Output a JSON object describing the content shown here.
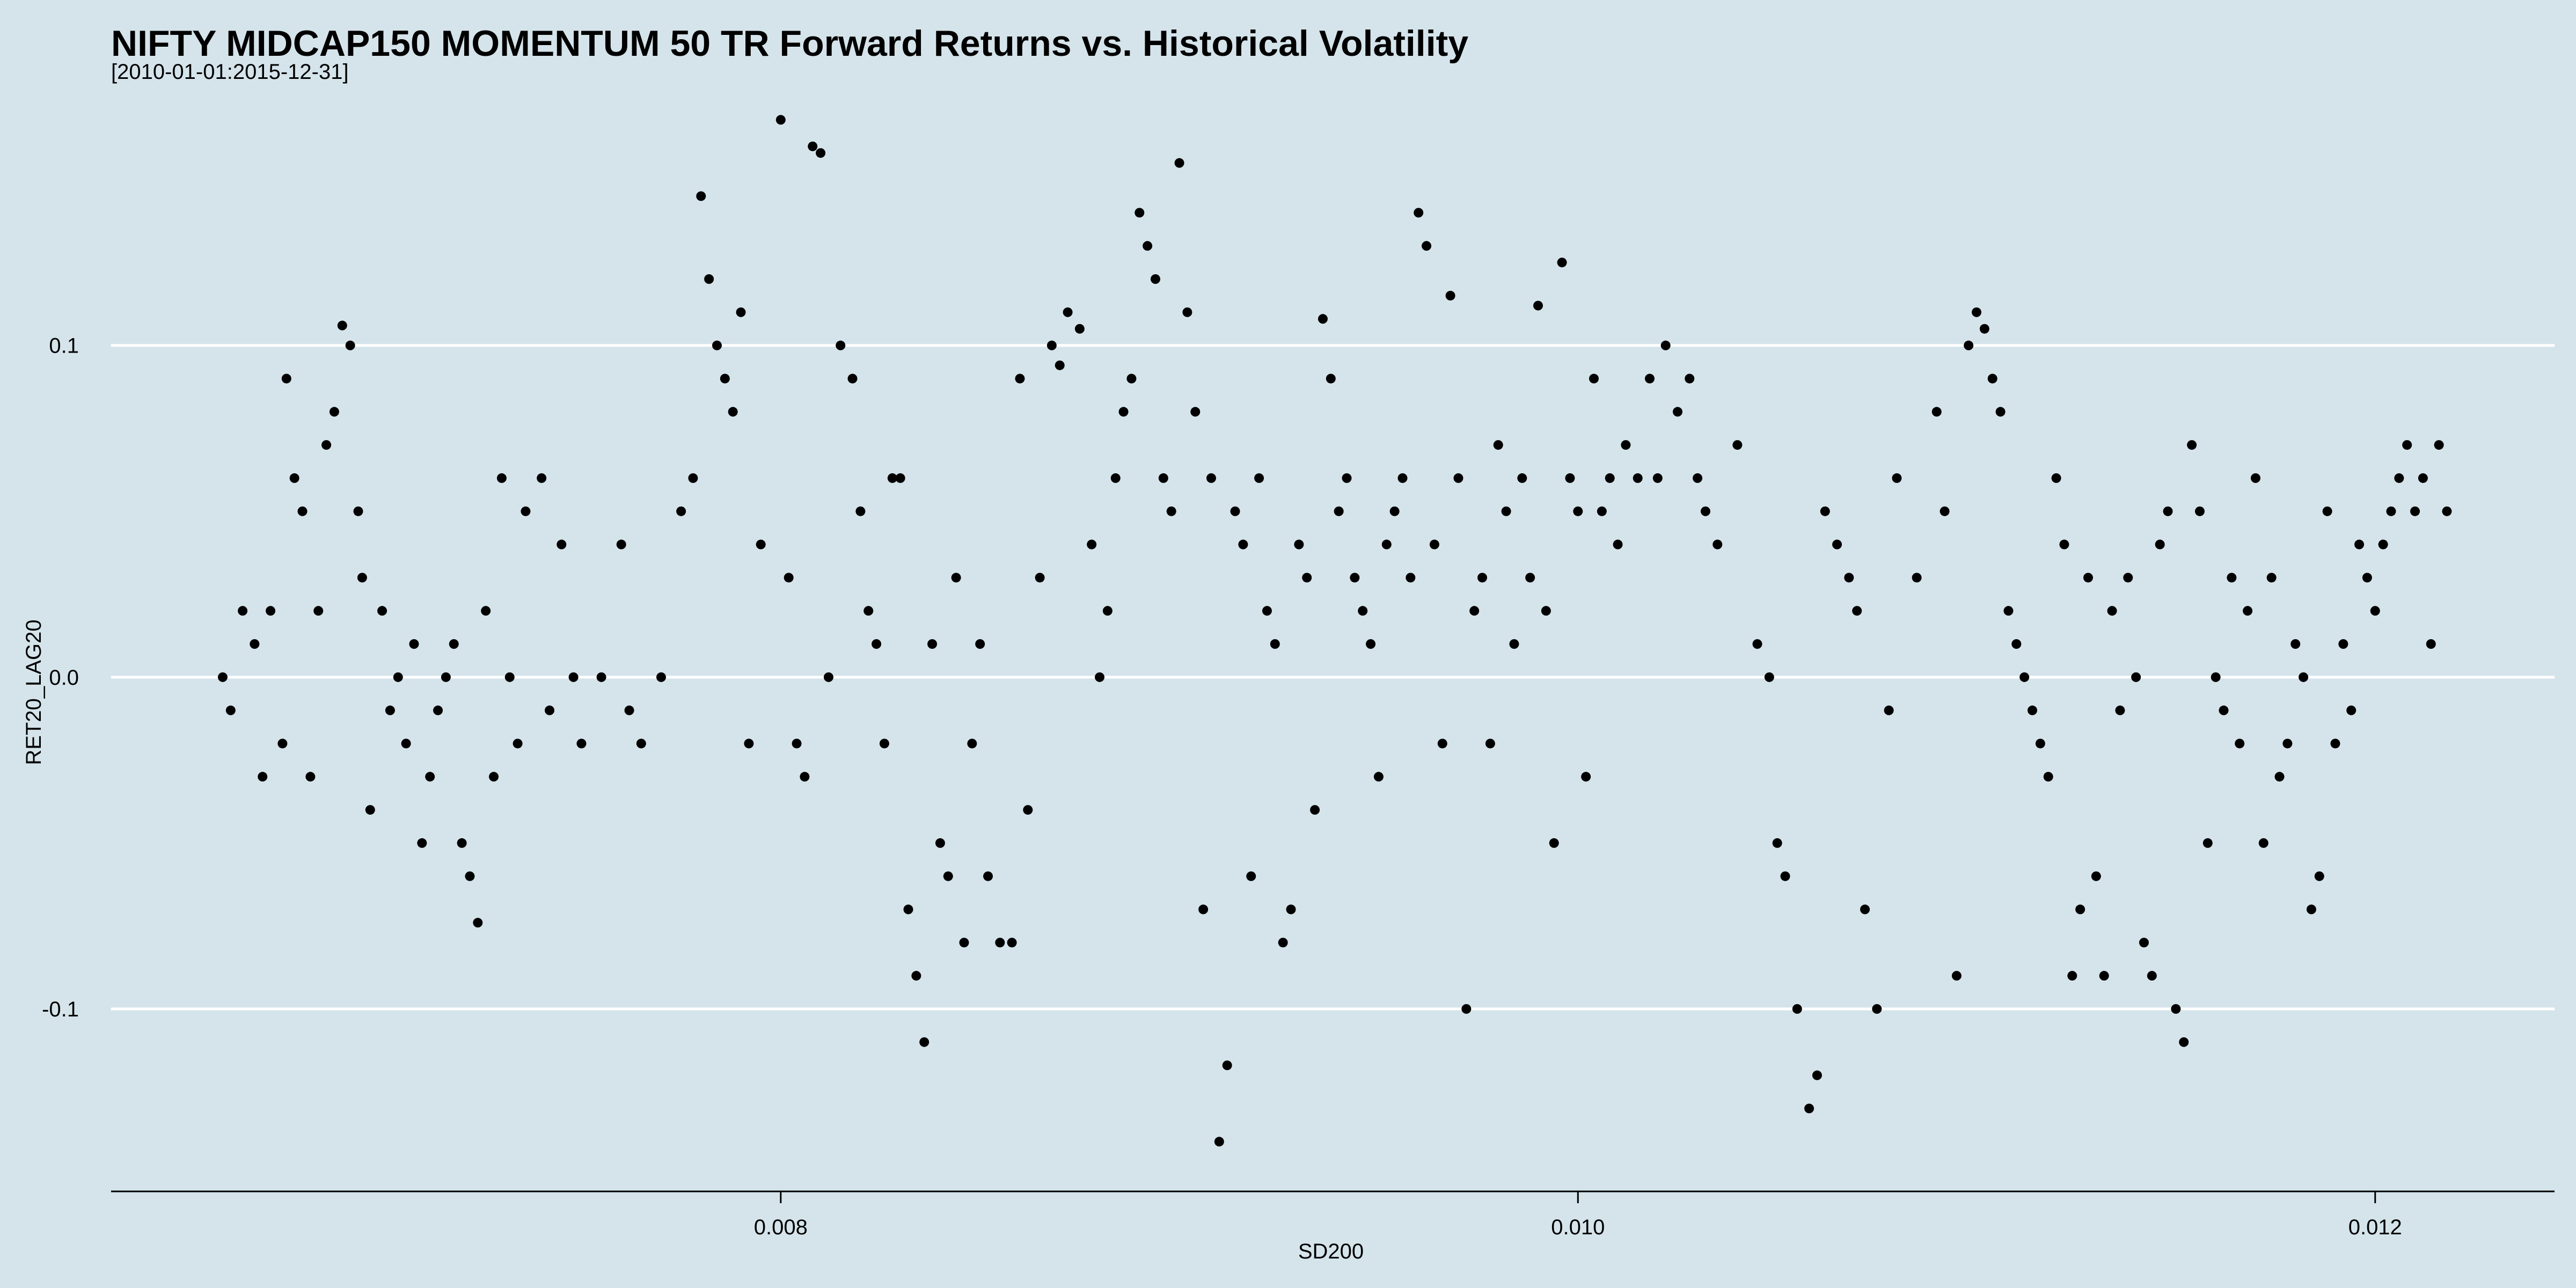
{
  "chart_data": {
    "type": "scatter",
    "title": "NIFTY MIDCAP150 MOMENTUM 50 TR Forward Returns vs. Historical Volatility",
    "subtitle": "[2010-01-01:2015-12-31]",
    "xlabel": "SD200",
    "ylabel": "RET20_LAG20",
    "x_ticks": [
      0.008,
      0.01,
      0.012
    ],
    "x_tick_labels": [
      "0.008",
      "0.010",
      "0.012"
    ],
    "y_ticks": [
      0.1,
      0.0,
      -0.1
    ],
    "y_tick_labels": [
      "0.1",
      "0.0",
      "-0.1"
    ],
    "xlim": [
      0.00632,
      0.01245
    ],
    "ylim": [
      -0.155,
      0.175
    ],
    "grid": "horizontal",
    "colors": {
      "background": "#d5e4eb",
      "point": "#000000",
      "gridline": "#ffffff"
    },
    "series": [
      {
        "points": [
          [
            0.0066,
            0.0
          ],
          [
            0.00662,
            -0.01
          ],
          [
            0.00665,
            0.02
          ],
          [
            0.00668,
            0.01
          ],
          [
            0.0067,
            -0.03
          ],
          [
            0.00672,
            0.02
          ],
          [
            0.00675,
            -0.02
          ],
          [
            0.00676,
            0.09
          ],
          [
            0.00678,
            0.06
          ],
          [
            0.0068,
            0.05
          ],
          [
            0.00682,
            -0.03
          ],
          [
            0.00684,
            0.02
          ],
          [
            0.00686,
            0.07
          ],
          [
            0.00688,
            0.08
          ],
          [
            0.0069,
            0.106
          ],
          [
            0.00692,
            0.1
          ],
          [
            0.00694,
            0.05
          ],
          [
            0.00695,
            0.03
          ],
          [
            0.00697,
            -0.04
          ],
          [
            0.007,
            0.02
          ],
          [
            0.00702,
            -0.01
          ],
          [
            0.00704,
            0.0
          ],
          [
            0.00706,
            -0.02
          ],
          [
            0.00708,
            0.01
          ],
          [
            0.0071,
            -0.05
          ],
          [
            0.00712,
            -0.03
          ],
          [
            0.00714,
            -0.01
          ],
          [
            0.00716,
            0.0
          ],
          [
            0.00718,
            0.01
          ],
          [
            0.0072,
            -0.05
          ],
          [
            0.00722,
            -0.06
          ],
          [
            0.00724,
            -0.074
          ],
          [
            0.00726,
            0.02
          ],
          [
            0.00728,
            -0.03
          ],
          [
            0.0073,
            0.06
          ],
          [
            0.00732,
            0.0
          ],
          [
            0.00734,
            -0.02
          ],
          [
            0.00736,
            0.05
          ],
          [
            0.0074,
            0.06
          ],
          [
            0.00742,
            -0.01
          ],
          [
            0.00745,
            0.04
          ],
          [
            0.00748,
            0.0
          ],
          [
            0.0075,
            -0.02
          ],
          [
            0.00755,
            0.0
          ],
          [
            0.0076,
            0.04
          ],
          [
            0.00762,
            -0.01
          ],
          [
            0.00765,
            -0.02
          ],
          [
            0.0077,
            0.0
          ],
          [
            0.00775,
            0.05
          ],
          [
            0.00778,
            0.06
          ],
          [
            0.0078,
            0.145
          ],
          [
            0.00782,
            0.12
          ],
          [
            0.00784,
            0.1
          ],
          [
            0.00786,
            0.09
          ],
          [
            0.00788,
            0.08
          ],
          [
            0.0079,
            0.11
          ],
          [
            0.00792,
            -0.02
          ],
          [
            0.00795,
            0.04
          ],
          [
            0.008,
            0.168
          ],
          [
            0.00802,
            0.03
          ],
          [
            0.00804,
            -0.02
          ],
          [
            0.00806,
            -0.03
          ],
          [
            0.00808,
            0.16
          ],
          [
            0.0081,
            0.158
          ],
          [
            0.00812,
            0.0
          ],
          [
            0.00815,
            0.1
          ],
          [
            0.00818,
            0.09
          ],
          [
            0.0082,
            0.05
          ],
          [
            0.00822,
            0.02
          ],
          [
            0.00824,
            0.01
          ],
          [
            0.00826,
            -0.02
          ],
          [
            0.00828,
            0.06
          ],
          [
            0.0083,
            0.06
          ],
          [
            0.00832,
            -0.07
          ],
          [
            0.00834,
            -0.09
          ],
          [
            0.00836,
            -0.11
          ],
          [
            0.00838,
            0.01
          ],
          [
            0.0084,
            -0.05
          ],
          [
            0.00842,
            -0.06
          ],
          [
            0.00844,
            0.03
          ],
          [
            0.00846,
            -0.08
          ],
          [
            0.00848,
            -0.02
          ],
          [
            0.0085,
            0.01
          ],
          [
            0.00852,
            -0.06
          ],
          [
            0.00855,
            -0.08
          ],
          [
            0.00858,
            -0.08
          ],
          [
            0.0086,
            0.09
          ],
          [
            0.00862,
            -0.04
          ],
          [
            0.00865,
            0.03
          ],
          [
            0.00868,
            0.1
          ],
          [
            0.0087,
            0.094
          ],
          [
            0.00872,
            0.11
          ],
          [
            0.00875,
            0.105
          ],
          [
            0.00878,
            0.04
          ],
          [
            0.0088,
            0.0
          ],
          [
            0.00882,
            0.02
          ],
          [
            0.00884,
            0.06
          ],
          [
            0.00886,
            0.08
          ],
          [
            0.00888,
            0.09
          ],
          [
            0.0089,
            0.14
          ],
          [
            0.00892,
            0.13
          ],
          [
            0.00894,
            0.12
          ],
          [
            0.00896,
            0.06
          ],
          [
            0.00898,
            0.05
          ],
          [
            0.009,
            0.155
          ],
          [
            0.00902,
            0.11
          ],
          [
            0.00904,
            0.08
          ],
          [
            0.00906,
            -0.07
          ],
          [
            0.00908,
            0.06
          ],
          [
            0.0091,
            -0.14
          ],
          [
            0.00912,
            -0.117
          ],
          [
            0.00914,
            0.05
          ],
          [
            0.00916,
            0.04
          ],
          [
            0.00918,
            -0.06
          ],
          [
            0.0092,
            0.06
          ],
          [
            0.00922,
            0.02
          ],
          [
            0.00924,
            0.01
          ],
          [
            0.00926,
            -0.08
          ],
          [
            0.00928,
            -0.07
          ],
          [
            0.0093,
            0.04
          ],
          [
            0.00932,
            0.03
          ],
          [
            0.00934,
            -0.04
          ],
          [
            0.00936,
            0.108
          ],
          [
            0.00938,
            0.09
          ],
          [
            0.0094,
            0.05
          ],
          [
            0.00942,
            0.06
          ],
          [
            0.00944,
            0.03
          ],
          [
            0.00946,
            0.02
          ],
          [
            0.00948,
            0.01
          ],
          [
            0.0095,
            -0.03
          ],
          [
            0.00952,
            0.04
          ],
          [
            0.00954,
            0.05
          ],
          [
            0.00956,
            0.06
          ],
          [
            0.00958,
            0.03
          ],
          [
            0.0096,
            0.14
          ],
          [
            0.00962,
            0.13
          ],
          [
            0.00964,
            0.04
          ],
          [
            0.00966,
            -0.02
          ],
          [
            0.00968,
            0.115
          ],
          [
            0.0097,
            0.06
          ],
          [
            0.00972,
            -0.1
          ],
          [
            0.00974,
            0.02
          ],
          [
            0.00976,
            0.03
          ],
          [
            0.00978,
            -0.02
          ],
          [
            0.0098,
            0.07
          ],
          [
            0.00982,
            0.05
          ],
          [
            0.00984,
            0.01
          ],
          [
            0.00986,
            0.06
          ],
          [
            0.00988,
            0.03
          ],
          [
            0.0099,
            0.112
          ],
          [
            0.00992,
            0.02
          ],
          [
            0.00994,
            -0.05
          ],
          [
            0.00996,
            0.125
          ],
          [
            0.00998,
            0.06
          ],
          [
            0.01,
            0.05
          ],
          [
            0.01002,
            -0.03
          ],
          [
            0.01004,
            0.09
          ],
          [
            0.01006,
            0.05
          ],
          [
            0.01008,
            0.06
          ],
          [
            0.0101,
            0.04
          ],
          [
            0.01012,
            0.07
          ],
          [
            0.01015,
            0.06
          ],
          [
            0.01018,
            0.09
          ],
          [
            0.0102,
            0.06
          ],
          [
            0.01022,
            0.1
          ],
          [
            0.01025,
            0.08
          ],
          [
            0.01028,
            0.09
          ],
          [
            0.0103,
            0.06
          ],
          [
            0.01032,
            0.05
          ],
          [
            0.01035,
            0.04
          ],
          [
            0.0104,
            0.07
          ],
          [
            0.01045,
            0.01
          ],
          [
            0.01048,
            0.0
          ],
          [
            0.0105,
            -0.05
          ],
          [
            0.01052,
            -0.06
          ],
          [
            0.01055,
            -0.1
          ],
          [
            0.01058,
            -0.13
          ],
          [
            0.0106,
            -0.12
          ],
          [
            0.01062,
            0.05
          ],
          [
            0.01065,
            0.04
          ],
          [
            0.01068,
            0.03
          ],
          [
            0.0107,
            0.02
          ],
          [
            0.01072,
            -0.07
          ],
          [
            0.01075,
            -0.1
          ],
          [
            0.01078,
            -0.01
          ],
          [
            0.0108,
            0.06
          ],
          [
            0.01085,
            0.03
          ],
          [
            0.0109,
            0.08
          ],
          [
            0.01092,
            0.05
          ],
          [
            0.01095,
            -0.09
          ],
          [
            0.01098,
            0.1
          ],
          [
            0.011,
            0.11
          ],
          [
            0.01102,
            0.105
          ],
          [
            0.01104,
            0.09
          ],
          [
            0.01106,
            0.08
          ],
          [
            0.01108,
            0.02
          ],
          [
            0.0111,
            0.01
          ],
          [
            0.01112,
            0.0
          ],
          [
            0.01114,
            -0.01
          ],
          [
            0.01116,
            -0.02
          ],
          [
            0.01118,
            -0.03
          ],
          [
            0.0112,
            0.06
          ],
          [
            0.01122,
            0.04
          ],
          [
            0.01124,
            -0.09
          ],
          [
            0.01126,
            -0.07
          ],
          [
            0.01128,
            0.03
          ],
          [
            0.0113,
            -0.06
          ],
          [
            0.01132,
            -0.09
          ],
          [
            0.01134,
            0.02
          ],
          [
            0.01136,
            -0.01
          ],
          [
            0.01138,
            0.03
          ],
          [
            0.0114,
            0.0
          ],
          [
            0.01142,
            -0.08
          ],
          [
            0.01144,
            -0.09
          ],
          [
            0.01146,
            0.04
          ],
          [
            0.01148,
            0.05
          ],
          [
            0.0115,
            -0.1
          ],
          [
            0.01152,
            -0.11
          ],
          [
            0.01154,
            0.07
          ],
          [
            0.01156,
            0.05
          ],
          [
            0.01158,
            -0.05
          ],
          [
            0.0116,
            0.0
          ],
          [
            0.01162,
            -0.01
          ],
          [
            0.01164,
            0.03
          ],
          [
            0.01166,
            -0.02
          ],
          [
            0.01168,
            0.02
          ],
          [
            0.0117,
            0.06
          ],
          [
            0.01172,
            -0.05
          ],
          [
            0.01174,
            0.03
          ],
          [
            0.01176,
            -0.03
          ],
          [
            0.01178,
            -0.02
          ],
          [
            0.0118,
            0.01
          ],
          [
            0.01182,
            0.0
          ],
          [
            0.01184,
            -0.07
          ],
          [
            0.01186,
            -0.06
          ],
          [
            0.01188,
            0.05
          ],
          [
            0.0119,
            -0.02
          ],
          [
            0.01192,
            0.01
          ],
          [
            0.01194,
            -0.01
          ],
          [
            0.01196,
            0.04
          ],
          [
            0.01198,
            0.03
          ],
          [
            0.012,
            0.02
          ],
          [
            0.01202,
            0.04
          ],
          [
            0.01204,
            0.05
          ],
          [
            0.01206,
            0.06
          ],
          [
            0.01208,
            0.07
          ],
          [
            0.0121,
            0.05
          ],
          [
            0.01212,
            0.06
          ],
          [
            0.01214,
            0.01
          ],
          [
            0.01216,
            0.07
          ],
          [
            0.01218,
            0.05
          ]
        ]
      }
    ]
  }
}
